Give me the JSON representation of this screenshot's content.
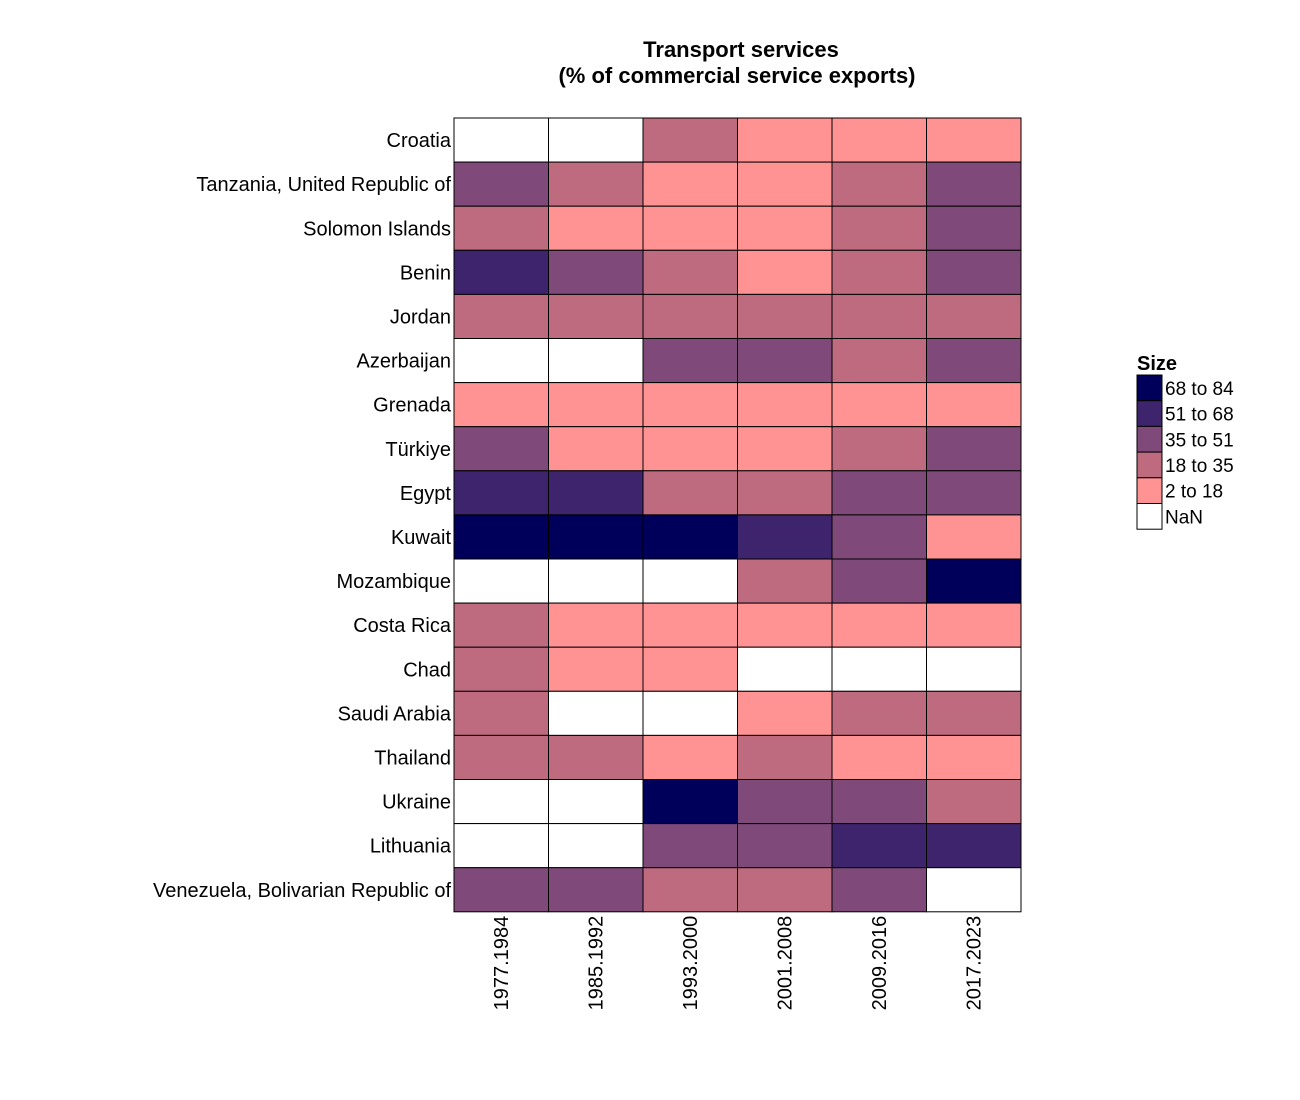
{
  "chart_data": {
    "type": "heatmap",
    "title_lines": [
      "Transport services",
      "(% of commercial service exports)"
    ],
    "rows": [
      "Croatia",
      "Tanzania, United Republic of",
      "Solomon Islands",
      "Benin",
      "Jordan",
      "Azerbaijan",
      "Grenada",
      "Türkiye",
      "Egypt",
      "Kuwait",
      "Mozambique",
      "Costa Rica",
      "Chad",
      "Saudi Arabia",
      "Thailand",
      "Ukraine",
      "Lithuania",
      "Venezuela, Bolivarian Republic of"
    ],
    "columns": [
      "1977.1984",
      "1985.1992",
      "1993.2000",
      "2001.2008",
      "2009.2016",
      "2017.2023"
    ],
    "cells": [
      [
        "NaN",
        "NaN",
        "18 to 35",
        "2 to 18",
        "2 to 18",
        "2 to 18"
      ],
      [
        "35 to 51",
        "18 to 35",
        "2 to 18",
        "2 to 18",
        "18 to 35",
        "35 to 51"
      ],
      [
        "18 to 35",
        "2 to 18",
        "2 to 18",
        "2 to 18",
        "18 to 35",
        "35 to 51"
      ],
      [
        "51 to 68",
        "35 to 51",
        "18 to 35",
        "2 to 18",
        "18 to 35",
        "35 to 51"
      ],
      [
        "18 to 35",
        "18 to 35",
        "18 to 35",
        "18 to 35",
        "18 to 35",
        "18 to 35"
      ],
      [
        "NaN",
        "NaN",
        "35 to 51",
        "35 to 51",
        "18 to 35",
        "35 to 51"
      ],
      [
        "2 to 18",
        "2 to 18",
        "2 to 18",
        "2 to 18",
        "2 to 18",
        "2 to 18"
      ],
      [
        "35 to 51",
        "2 to 18",
        "2 to 18",
        "2 to 18",
        "18 to 35",
        "35 to 51"
      ],
      [
        "51 to 68",
        "51 to 68",
        "18 to 35",
        "18 to 35",
        "35 to 51",
        "35 to 51"
      ],
      [
        "68 to 84",
        "68 to 84",
        "68 to 84",
        "51 to 68",
        "35 to 51",
        "2 to 18"
      ],
      [
        "NaN",
        "NaN",
        "NaN",
        "18 to 35",
        "35 to 51",
        "68 to 84"
      ],
      [
        "18 to 35",
        "2 to 18",
        "2 to 18",
        "2 to 18",
        "2 to 18",
        "2 to 18"
      ],
      [
        "18 to 35",
        "2 to 18",
        "2 to 18",
        "NaN",
        "NaN",
        "NaN"
      ],
      [
        "18 to 35",
        "NaN",
        "NaN",
        "2 to 18",
        "18 to 35",
        "18 to 35"
      ],
      [
        "18 to 35",
        "18 to 35",
        "2 to 18",
        "18 to 35",
        "2 to 18",
        "2 to 18"
      ],
      [
        "NaN",
        "NaN",
        "68 to 84",
        "35 to 51",
        "35 to 51",
        "18 to 35"
      ],
      [
        "NaN",
        "NaN",
        "35 to 51",
        "35 to 51",
        "51 to 68",
        "51 to 68"
      ],
      [
        "35 to 51",
        "35 to 51",
        "18 to 35",
        "18 to 35",
        "35 to 51",
        "NaN"
      ]
    ],
    "legend": {
      "title": "Size",
      "placement": "right",
      "entries": [
        {
          "label": "68 to 84",
          "color": "#00005a"
        },
        {
          "label": "51 to 68",
          "color": "#3d246c"
        },
        {
          "label": "35 to 51",
          "color": "#7f4a7a"
        },
        {
          "label": "18 to 35",
          "color": "#be6b80"
        },
        {
          "label": "2 to 18",
          "color": "#ff9293"
        },
        {
          "label": "NaN",
          "color": "#ffffff"
        }
      ]
    }
  }
}
